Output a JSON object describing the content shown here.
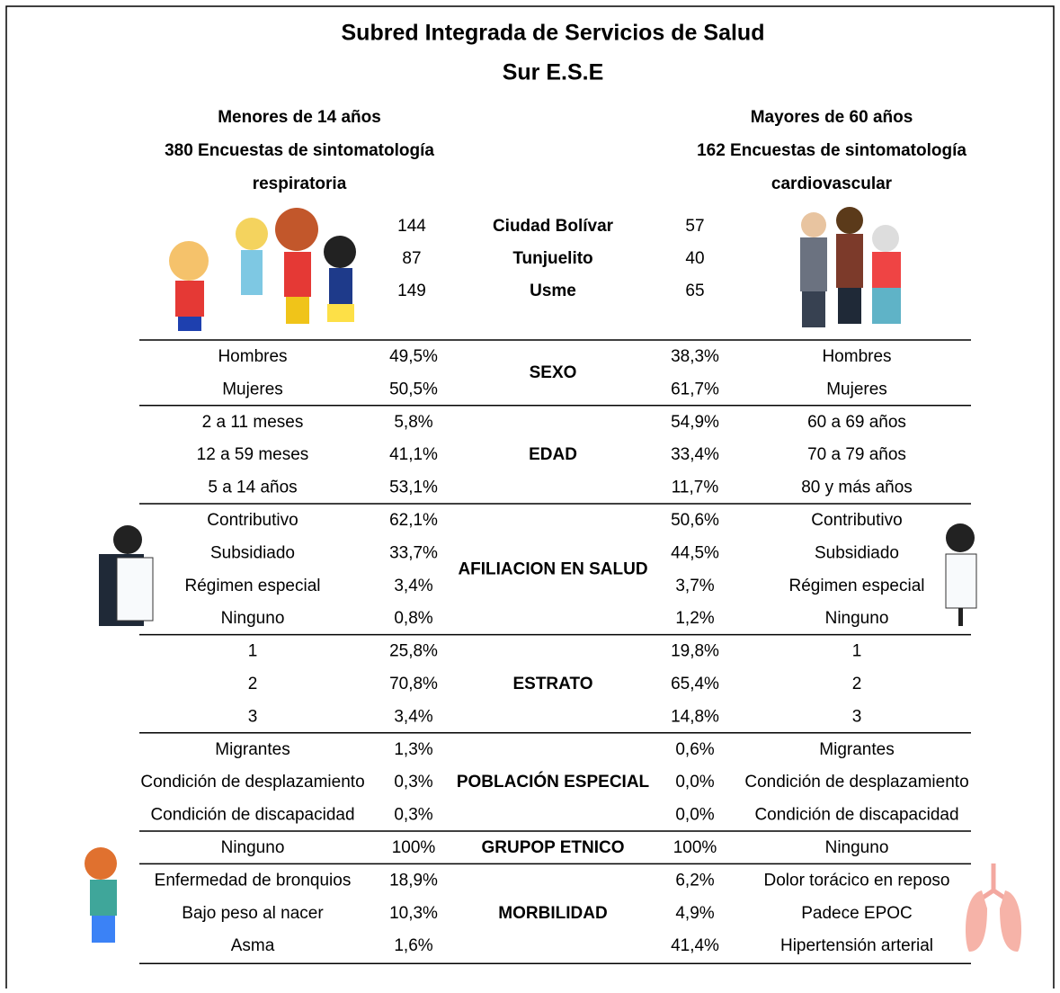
{
  "header": {
    "title_line1": "Subred Integrada de Servicios de Salud",
    "title_line2": "Sur E.S.E"
  },
  "left_group": {
    "title": "Menores de 14 años",
    "subtitle_line1": "380 Encuestas de sintomatología",
    "subtitle_line2": "respiratoria"
  },
  "right_group": {
    "title": "Mayores de 60 años",
    "subtitle_line1": "162 Encuestas de sintomatología",
    "subtitle_line2": "cardiovascular"
  },
  "localities": [
    {
      "left": "144",
      "name": "Ciudad Bolívar",
      "right": "57"
    },
    {
      "left": "87",
      "name": "Tunjuelito",
      "right": "40"
    },
    {
      "left": "149",
      "name": "Usme",
      "right": "65"
    }
  ],
  "sections": [
    {
      "name": "SEXO",
      "rows": [
        {
          "left_label": "Hombres",
          "left_value": "49,5%",
          "right_value": "38,3%",
          "right_label": "Hombres"
        },
        {
          "left_label": "Mujeres",
          "left_value": "50,5%",
          "right_value": "61,7%",
          "right_label": "Mujeres"
        }
      ]
    },
    {
      "name": "EDAD",
      "rows": [
        {
          "left_label": "2 a 11 meses",
          "left_value": "5,8%",
          "right_value": "54,9%",
          "right_label": "60 a 69 años"
        },
        {
          "left_label": "12 a 59 meses",
          "left_value": "41,1%",
          "right_value": "33,4%",
          "right_label": "70 a 79 años"
        },
        {
          "left_label": "5 a 14 años",
          "left_value": "53,1%",
          "right_value": "11,7%",
          "right_label": "80 y más años"
        }
      ]
    },
    {
      "name": "AFILIACION EN SALUD",
      "rows": [
        {
          "left_label": "Contributivo",
          "left_value": "62,1%",
          "right_value": "50,6%",
          "right_label": "Contributivo"
        },
        {
          "left_label": "Subsidiado",
          "left_value": "33,7%",
          "right_value": "44,5%",
          "right_label": "Subsidiado"
        },
        {
          "left_label": "Régimen especial",
          "left_value": "3,4%",
          "right_value": "3,7%",
          "right_label": "Régimen especial"
        },
        {
          "left_label": "Ninguno",
          "left_value": "0,8%",
          "right_value": "1,2%",
          "right_label": "Ninguno"
        }
      ]
    },
    {
      "name": "ESTRATO",
      "rows": [
        {
          "left_label": "1",
          "left_value": "25,8%",
          "right_value": "19,8%",
          "right_label": "1"
        },
        {
          "left_label": "2",
          "left_value": "70,8%",
          "right_value": "65,4%",
          "right_label": "2"
        },
        {
          "left_label": "3",
          "left_value": "3,4%",
          "right_value": "14,8%",
          "right_label": "3"
        }
      ]
    },
    {
      "name": "POBLACIÓN ESPECIAL",
      "rows": [
        {
          "left_label": "Migrantes",
          "left_value": "1,3%",
          "right_value": "0,6%",
          "right_label": "Migrantes"
        },
        {
          "left_label": "Condición de desplazamiento",
          "left_value": "0,3%",
          "right_value": "0,0%",
          "right_label": "Condición de desplazamiento"
        },
        {
          "left_label": "Condición de discapacidad",
          "left_value": "0,3%",
          "right_value": "0,0%",
          "right_label": "Condición de discapacidad"
        }
      ]
    },
    {
      "name": "GRUPOP ETNICO",
      "rows": [
        {
          "left_label": "Ninguno",
          "left_value": "100%",
          "right_value": "100%",
          "right_label": "Ninguno"
        }
      ]
    },
    {
      "name": "MORBILIDAD",
      "rows": [
        {
          "left_label": "Enfermedad de bronquios",
          "left_value": "18,9%",
          "right_value": "6,2%",
          "right_label": "Dolor torácico en reposo"
        },
        {
          "left_label": "Bajo peso al nacer",
          "left_value": "10,3%",
          "right_value": "4,9%",
          "right_label": "Padece EPOC"
        },
        {
          "left_label": "Asma",
          "left_value": "1,6%",
          "right_value": "41,4%",
          "right_label": "Hipertensión arterial"
        }
      ]
    }
  ]
}
